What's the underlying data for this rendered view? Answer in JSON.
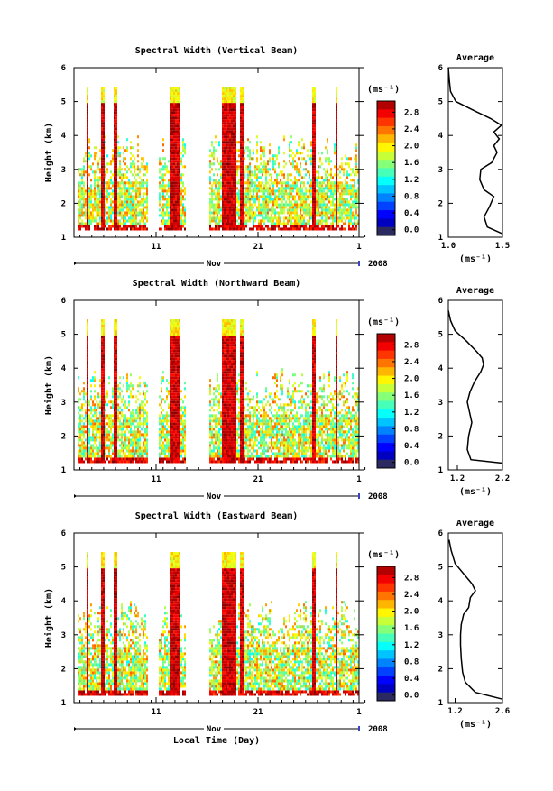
{
  "figure": {
    "month_label": "Nov",
    "year_label": "2008",
    "xlabel": "Local Time (Day)",
    "cb_unit": "(ms⁻¹)",
    "avg_unit": "(ms⁻¹)"
  },
  "chart_data": [
    {
      "type": "heatmap",
      "title": "Spectral Width (Vertical Beam)",
      "ylabel": "Height (km)",
      "xlabel": "",
      "ylim": [
        1,
        6
      ],
      "yticks": [
        "1",
        "2",
        "3",
        "4",
        "5",
        "6"
      ],
      "xticks": [
        "11",
        "21",
        "1"
      ],
      "colorbar": {
        "range": [
          0,
          2.8
        ],
        "ticks": [
          "2.8",
          "2.4",
          "2.0",
          "1.6",
          "1.2",
          "0.8",
          "0.4",
          "0.0"
        ]
      },
      "average_panel": {
        "title": "Average",
        "xticks": [
          "1.0",
          "1.5"
        ],
        "xlim": [
          1.0,
          1.5
        ],
        "ylim": [
          1,
          6
        ],
        "yticks": [
          "1",
          "2",
          "3",
          "4",
          "5",
          "6"
        ],
        "profile_x": [
          1.5,
          1.36,
          1.33,
          1.38,
          1.42,
          1.33,
          1.29,
          1.3,
          1.4,
          1.45,
          1.42,
          1.47,
          1.42,
          1.49,
          1.39,
          1.26,
          1.07,
          1.02,
          1.01,
          1.0
        ],
        "profile_y": [
          1.1,
          1.3,
          1.6,
          1.9,
          2.2,
          2.4,
          2.7,
          3.0,
          3.2,
          3.5,
          3.7,
          3.9,
          4.1,
          4.3,
          4.5,
          4.7,
          5.0,
          5.3,
          5.6,
          6.0
        ]
      }
    },
    {
      "type": "heatmap",
      "title": "Spectral Width (Northward Beam)",
      "ylabel": "Height (km)",
      "xlabel": "",
      "ylim": [
        1,
        6
      ],
      "yticks": [
        "1",
        "2",
        "3",
        "4",
        "5",
        "6"
      ],
      "xticks": [
        "11",
        "21",
        "1"
      ],
      "colorbar": {
        "range": [
          0,
          2.8
        ],
        "ticks": [
          "2.8",
          "2.4",
          "2.0",
          "1.6",
          "1.2",
          "0.8",
          "0.4",
          "0.0"
        ]
      },
      "average_panel": {
        "title": "Average",
        "xticks": [
          "1.2",
          "2.2"
        ],
        "xlim": [
          1.0,
          2.2
        ],
        "ylim": [
          1,
          6
        ],
        "yticks": [
          "1",
          "2",
          "3",
          "4",
          "5",
          "6"
        ],
        "profile_x": [
          2.2,
          1.5,
          1.42,
          1.45,
          1.52,
          1.47,
          1.42,
          1.48,
          1.58,
          1.72,
          1.78,
          1.75,
          1.62,
          1.4,
          1.15,
          1.05,
          1.0
        ],
        "profile_y": [
          1.2,
          1.3,
          1.6,
          2.0,
          2.4,
          2.7,
          3.0,
          3.3,
          3.6,
          3.9,
          4.1,
          4.3,
          4.5,
          4.8,
          5.1,
          5.4,
          5.7
        ]
      }
    },
    {
      "type": "heatmap",
      "title": "Spectral Width (Eastward Beam)",
      "ylabel": "Height (km)",
      "xlabel": "Local Time (Day)",
      "ylim": [
        1,
        6
      ],
      "yticks": [
        "1",
        "2",
        "3",
        "4",
        "5",
        "6"
      ],
      "xticks": [
        "11",
        "21",
        "1"
      ],
      "colorbar": {
        "range": [
          0,
          2.8
        ],
        "ticks": [
          "2.8",
          "2.4",
          "2.0",
          "1.6",
          "1.2",
          "0.8",
          "0.4",
          "0.0"
        ]
      },
      "average_panel": {
        "title": "Average",
        "xticks": [
          "1.2",
          "2.6"
        ],
        "xlim": [
          1.0,
          2.6
        ],
        "ylim": [
          1,
          6
        ],
        "yticks": [
          "1",
          "2",
          "3",
          "4",
          "5",
          "6"
        ],
        "profile_x": [
          2.6,
          1.8,
          1.5,
          1.42,
          1.38,
          1.36,
          1.36,
          1.38,
          1.45,
          1.6,
          1.65,
          1.8,
          1.7,
          1.45,
          1.2,
          1.08,
          1.02
        ],
        "profile_y": [
          1.1,
          1.3,
          1.6,
          1.9,
          2.3,
          2.7,
          3.0,
          3.3,
          3.6,
          3.8,
          4.1,
          4.3,
          4.5,
          4.8,
          5.1,
          5.5,
          5.8
        ]
      }
    }
  ]
}
